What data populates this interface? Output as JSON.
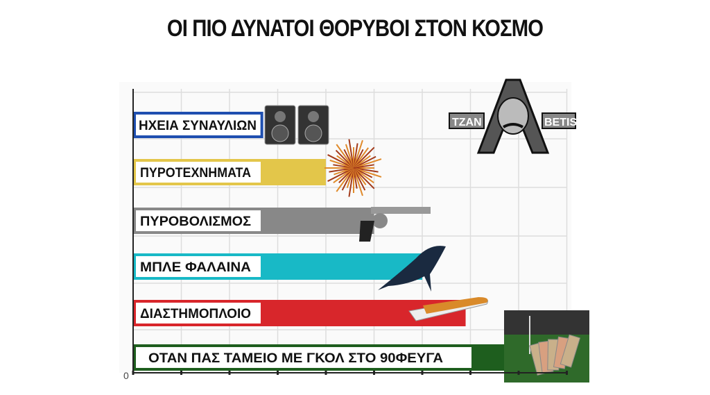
{
  "title": "ΟΙ ΠΙΟ ΔΥΝΑΤΟΙ ΘΟΡΥΒΟΙ ΣΤΟΝ ΚΟΣΜΟ",
  "logo_text": "TZAN BETIS",
  "chart_data": {
    "type": "bar",
    "orientation": "horizontal",
    "title": "ΟΙ ΠΙΟ ΔΥΝΑΤΟΙ ΘΟΡΥΒΟΙ ΣΤΟΝ ΚΟΣΜΟ",
    "categories": [
      "ΗΧΕΙΑ ΣΥΝΑΥΛΙΩΝ",
      "ΠΥΡΟΤΕΧΝΗΜΑΤΑ",
      "ΠΥΡΟΒΟΛΙΣΜΟΣ",
      "ΜΠΛΕ ΦΑΛΑΙΝΑ",
      "ΔΙΑΣΤΗΜΟΠΛΟΙΟ",
      "ΟΤΑΝ ΠΑΣ ΤΑΜΕΙΟ ΜΕ ΓΚΟΛ ΣΤΟ 90ΦΕΥΓΑ"
    ],
    "values": [
      2.7,
      4.0,
      5.0,
      6.0,
      6.9,
      9.0
    ],
    "colors": [
      "#1f4fb0",
      "#e3c64a",
      "#888888",
      "#18b9c6",
      "#d8262b",
      "#1e5e1e"
    ],
    "icons": [
      "speakers-icon",
      "fireworks-icon",
      "revolver-icon",
      "whale-icon",
      "space-shuttle-icon",
      "money-stadium-icon"
    ],
    "x_tick_labels": [
      "0"
    ],
    "xlim": [
      0,
      9
    ],
    "grid": true,
    "xlabel": "",
    "ylabel": ""
  }
}
